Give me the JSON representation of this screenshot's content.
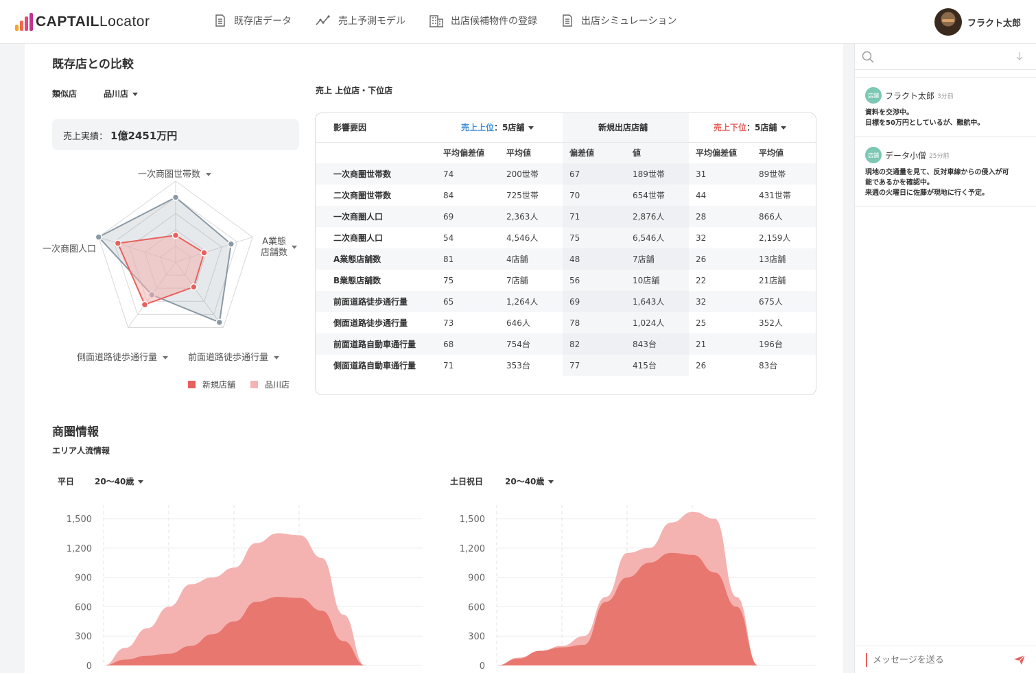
{
  "header": {
    "logo_bold": "CAPTAIL",
    "logo_light": "Locator",
    "nav": [
      {
        "label": "既存店データ",
        "icon": "document-icon"
      },
      {
        "label": "売上予測モデル",
        "icon": "trend-icon"
      },
      {
        "label": "出店候補物件の登録",
        "icon": "building-icon"
      },
      {
        "label": "出店シミュレーション",
        "icon": "document-icon"
      }
    ],
    "user_name": "フラクト太郎"
  },
  "comparison": {
    "title": "既存店との比較",
    "similar_label": "類似店",
    "similar_value": "品川店",
    "sales_label": "売上実績：",
    "sales_value": "1億2451万円",
    "radar_axes": [
      "一次商圏世帯数",
      "A業態店舗数",
      "前面道路徒歩通行量",
      "側面道路徒歩通行量",
      "一次商圏人口"
    ],
    "radar_axis_a": "A業態",
    "radar_axis_b": "店舗数",
    "legend": [
      {
        "label": "新規店舗",
        "color": "#e8605b"
      },
      {
        "label": "品川店",
        "color": "#f4b3b1"
      }
    ]
  },
  "ranking": {
    "title": "売上 上位店・下位店",
    "col_factor": "影響要因",
    "top_label": "売上上位",
    "top_suffix": "：5店舗",
    "new_label": "新規出店店舗",
    "bottom_label": "売上下位",
    "bottom_suffix": "：5店舗",
    "sub_headers": [
      "平均偏差値",
      "平均値",
      "偏差値",
      "値",
      "平均偏差値",
      "平均値"
    ],
    "rows": [
      [
        "一次商圏世帯数",
        "74",
        "200世帯",
        "67",
        "189世帯",
        "31",
        "89世帯"
      ],
      [
        "二次商圏世帯数",
        "84",
        "725世帯",
        "70",
        "654世帯",
        "44",
        "431世帯"
      ],
      [
        "一次商圏人口",
        "69",
        "2,363人",
        "71",
        "2,876人",
        "28",
        "866人"
      ],
      [
        "二次商圏人口",
        "54",
        "4,546人",
        "75",
        "6,546人",
        "32",
        "2,159人"
      ],
      [
        "A業態店舗数",
        "81",
        "4店舗",
        "48",
        "7店舗",
        "26",
        "13店舗"
      ],
      [
        "B業態店舗数",
        "75",
        "7店舗",
        "56",
        "10店舗",
        "22",
        "21店舗"
      ],
      [
        "前面道路徒歩通行量",
        "65",
        "1,264人",
        "69",
        "1,643人",
        "32",
        "675人"
      ],
      [
        "側面道路徒歩通行量",
        "73",
        "646人",
        "78",
        "1,024人",
        "25",
        "352人"
      ],
      [
        "前面道路自動車通行量",
        "68",
        "754台",
        "82",
        "843台",
        "21",
        "196台"
      ],
      [
        "側面道路自動車通行量",
        "71",
        "353台",
        "77",
        "415台",
        "26",
        "83台"
      ]
    ]
  },
  "trade_area": {
    "title": "商圏情報",
    "subtitle": "エリア人流情報",
    "weekday_label": "平日",
    "weekday_age": "20〜40歳",
    "holiday_label": "土日祝日",
    "holiday_age": "20〜40歳"
  },
  "chart_data": [
    {
      "type": "area",
      "ylim": [
        0,
        1500
      ],
      "yticks": [
        "0",
        "300",
        "600",
        "900",
        "1,200",
        "1,500"
      ],
      "x": [
        0,
        1,
        2,
        3,
        4,
        5,
        6,
        7,
        8,
        9,
        10,
        11,
        12
      ],
      "series": [
        {
          "values": [
            0,
            180,
            380,
            600,
            830,
            900,
            1000,
            1250,
            1350,
            1330,
            1100,
            520,
            0
          ],
          "color": "#f4b3b1"
        },
        {
          "values": [
            0,
            60,
            100,
            120,
            200,
            320,
            450,
            650,
            700,
            690,
            560,
            250,
            0
          ],
          "color": "#e8776f"
        }
      ]
    },
    {
      "type": "area",
      "ylim": [
        0,
        1500
      ],
      "yticks": [
        "0",
        "300",
        "600",
        "900",
        "1,200",
        "1,500"
      ],
      "x": [
        0,
        1,
        2,
        3,
        4,
        5,
        6,
        7,
        8,
        9,
        10,
        11,
        12
      ],
      "series": [
        {
          "values": [
            0,
            80,
            150,
            200,
            300,
            700,
            1150,
            1200,
            1460,
            1570,
            1500,
            700,
            0
          ],
          "color": "#f4b3b1"
        },
        {
          "values": [
            0,
            70,
            150,
            185,
            210,
            650,
            900,
            1050,
            1150,
            1130,
            950,
            600,
            0
          ],
          "color": "#e8776f"
        }
      ]
    }
  ],
  "comments": {
    "search_placeholder": "",
    "items": [
      {
        "badge": "店舗",
        "name": "フラクト太郎",
        "time": "3分前",
        "lines": [
          "資料を交渉中。",
          "目標を50万円としているが、難航中。"
        ]
      },
      {
        "badge": "店舗",
        "name": "データ小僧",
        "time": "25分前",
        "lines": [
          "現地の交通量を見て、反対車線からの侵入が可",
          "能であるかを確認中。",
          "来週の火曜日に佐藤が現地に行く予定。"
        ]
      }
    ],
    "message_placeholder": "メッセージを送る"
  },
  "radar_data": {
    "max": 100,
    "series": [
      {
        "name": "品川店",
        "values": [
          80,
          72,
          92,
          50,
          100
        ],
        "color": "#8a99a6"
      },
      {
        "name": "新規店舗",
        "values": [
          33,
          37,
          38,
          65,
          75
        ],
        "color": "#e8605b"
      }
    ]
  }
}
